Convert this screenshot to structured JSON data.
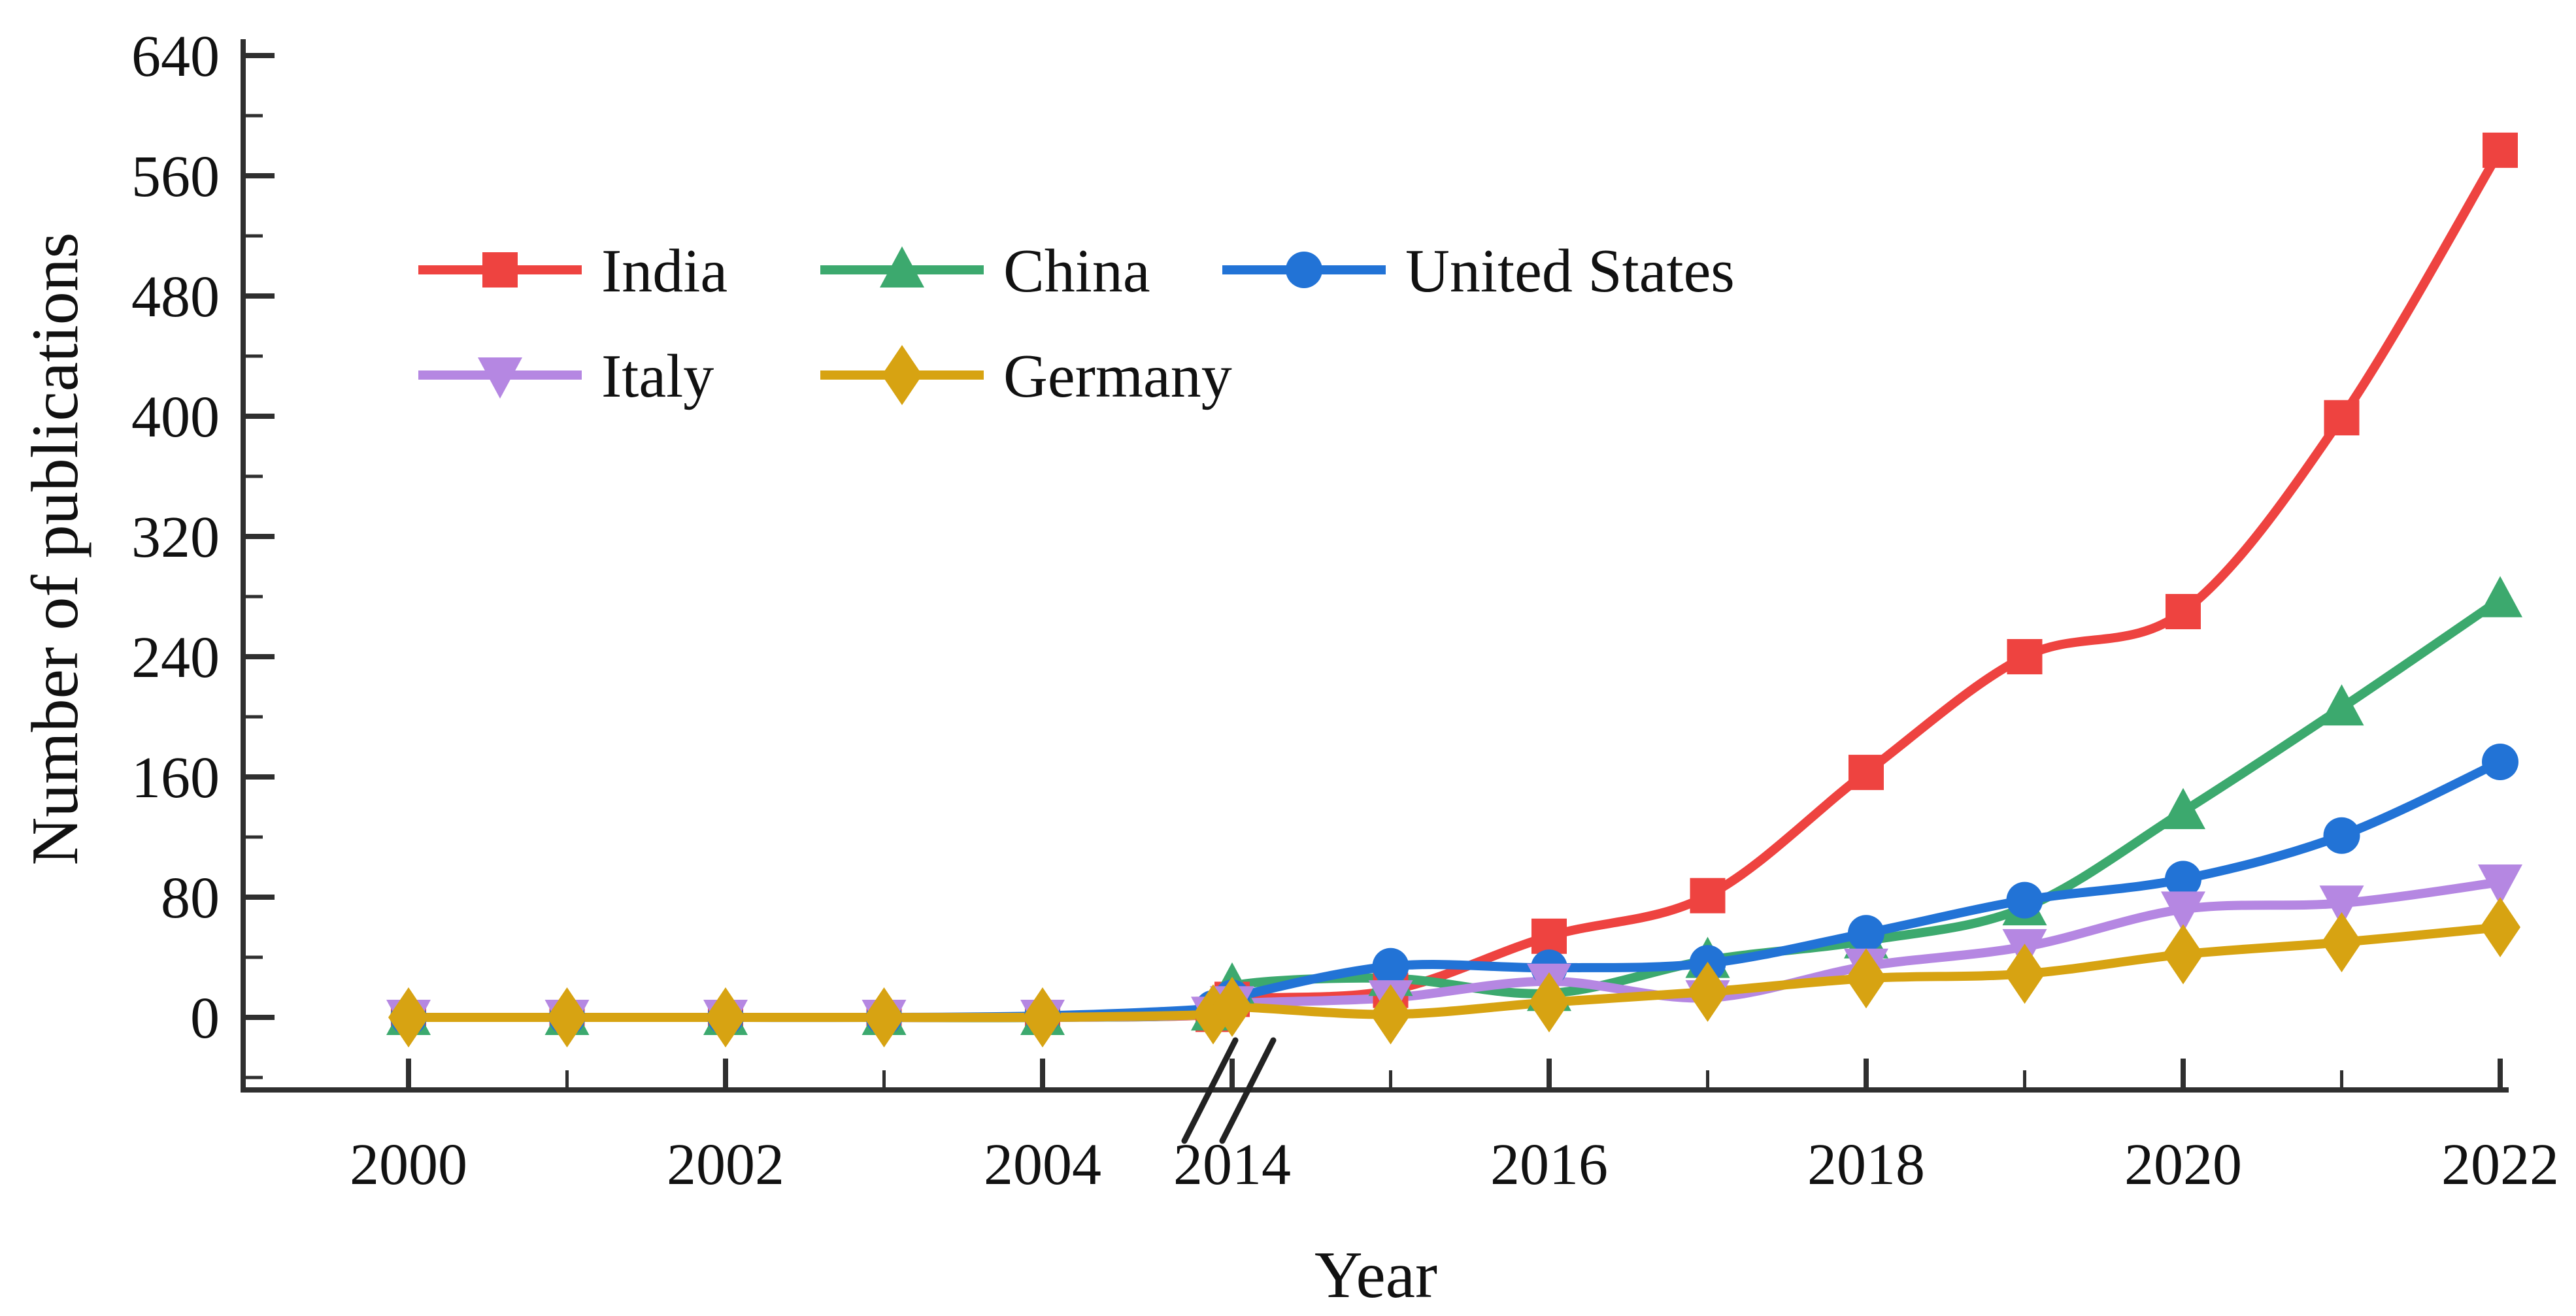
{
  "chart_data": {
    "type": "line",
    "title": "",
    "xlabel": "Year",
    "ylabel": "Number of publications",
    "x_years": [
      2000,
      2001,
      2002,
      2003,
      2004,
      2013,
      2014,
      2015,
      2016,
      2017,
      2018,
      2019,
      2020,
      2021,
      2022
    ],
    "x_axis_break": {
      "after": 2004,
      "before": 2014
    },
    "x_major_ticks": [
      2000,
      2002,
      2004,
      2014,
      2016,
      2018,
      2020,
      2022
    ],
    "x_minor_ticks": [
      2001,
      2003,
      2015,
      2017,
      2019,
      2021
    ],
    "y_major_ticks": [
      0,
      80,
      160,
      240,
      320,
      400,
      480,
      560,
      640
    ],
    "y_minor_ticks": [
      -40,
      40,
      120,
      200,
      280,
      360,
      440,
      520,
      600
    ],
    "ylim": [
      -48,
      655
    ],
    "grid": false,
    "legend_position": "upper-left-inside",
    "series": [
      {
        "name": "India",
        "color": "#ee4340",
        "marker": "square",
        "values": [
          0,
          0,
          0,
          0,
          0,
          2,
          12,
          18,
          54,
          81,
          163,
          240,
          270,
          399,
          577
        ]
      },
      {
        "name": "China",
        "color": "#3ca96e",
        "marker": "triangle-up",
        "values": [
          0,
          0,
          0,
          0,
          0,
          3,
          21,
          26,
          16,
          38,
          51,
          73,
          137,
          206,
          278
        ]
      },
      {
        "name": "United States",
        "color": "#2273d6",
        "marker": "circle",
        "values": [
          0,
          0,
          0,
          0,
          1,
          6,
          13,
          34,
          33,
          36,
          56,
          78,
          92,
          121,
          170
        ]
      },
      {
        "name": "Italy",
        "color": "#b587e2",
        "marker": "triangle-down",
        "values": [
          0,
          0,
          0,
          0,
          0,
          2,
          9,
          13,
          24,
          13,
          34,
          47,
          72,
          76,
          90
        ]
      },
      {
        "name": "Germany",
        "color": "#d7a312",
        "marker": "diamond",
        "values": [
          0,
          0,
          0,
          0,
          0,
          2,
          7,
          2,
          10,
          17,
          26,
          29,
          42,
          50,
          60
        ]
      }
    ]
  },
  "colors": {
    "axis": "#2f2f2f",
    "break_mark": "#222222",
    "text": "#111111",
    "background": "#ffffff"
  }
}
